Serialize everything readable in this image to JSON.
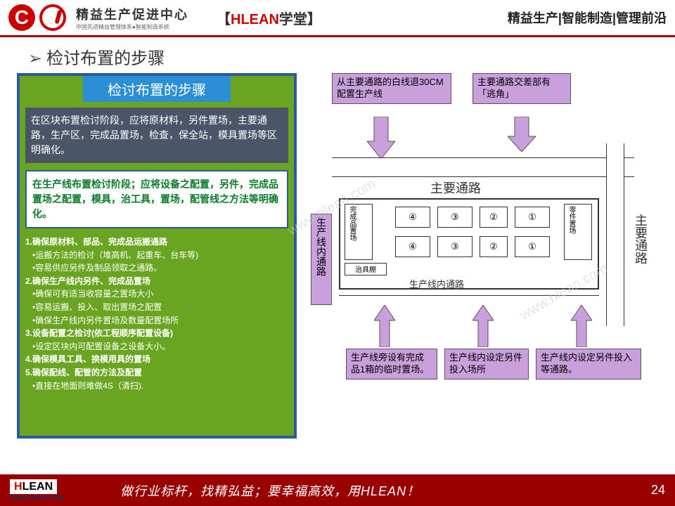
{
  "header": {
    "center_title": "精益生产促进中心",
    "center_sub": "中国先进精益管理体系●智能制造系统",
    "hlean_prefix": "【",
    "hlean_red": "HLEAN",
    "hlean_suffix": "学堂】",
    "right_nav": "精益生产|智能制造|管理前沿"
  },
  "title": {
    "arrow": "➢",
    "text": "检讨布置的步骤"
  },
  "left": {
    "step_header": "检讨布置的步骤",
    "gray_box": "在区块布置检讨阶段，应将原材料，另件置场，主要通路，生产区，完成品置场，检查，保全站，模具置场等区明确化。",
    "white_box": "在生产线布置检讨阶段；应将设备之配置，另件，完成品置场之配置，模具，治工具，置场，配管线之方法等明确化。",
    "bullets": [
      {
        "t": "main",
        "s": "1.确保原材料、部品、完成品运搬通路"
      },
      {
        "t": "sub",
        "s": "•运搬方法的检讨（堆高机、起重车、台车等)"
      },
      {
        "t": "sub",
        "s": "•容易供应另件及制品领取之通路。"
      },
      {
        "t": "main",
        "s": "2.确保生产线内另件、完成品置场"
      },
      {
        "t": "sub",
        "s": "•确保可有适当收容量之置场大小"
      },
      {
        "t": "sub",
        "s": "•容易运搬、投入、取出置场之配置"
      },
      {
        "t": "sub",
        "s": "•确保生产线内另件置场及数量配置场所"
      },
      {
        "t": "main",
        "s": "3.设备配置之检讨(依工程顺序配置设备)"
      },
      {
        "t": "sub",
        "s": "•设定区块内可配置设备之设备大小。"
      },
      {
        "t": "main",
        "s": "4.确保模具工具、换模用具的置场"
      },
      {
        "t": "main",
        "s": "5.确保配线、配管的方法及配置"
      },
      {
        "t": "sub",
        "s": "•直接在地面则难做4S（清扫)."
      }
    ]
  },
  "right": {
    "callout_top1": "从主要通路的白线退30CM配置生产线",
    "callout_top2": "主要通路交差部有「逃角」",
    "main_path": "主要通路",
    "inner_path_v": "生产线内通路",
    "main_path_v": "主要通路",
    "finished_area": "完成品置场",
    "parts_area": "零件置场",
    "jig_shelf": "治具棚",
    "inner_path_h": "生产线内通路",
    "callout_bot1": "生产线旁设有完成品1箱的临时置场。",
    "callout_bot2": "生产线内设定另件投入场所",
    "callout_bot3": "生产线内设定另件投入等通路。",
    "nums": [
      "④",
      "③",
      "②",
      "①",
      "④",
      "③",
      "②",
      "①"
    ]
  },
  "footer": {
    "logo_h": "H",
    "logo_rest": "LEAN",
    "url": "www.hlean.com",
    "text": "做行业标杆，找精弘益；要幸福高效，用HLEAN！",
    "page": "24"
  },
  "watermark": "www.hlean.com"
}
